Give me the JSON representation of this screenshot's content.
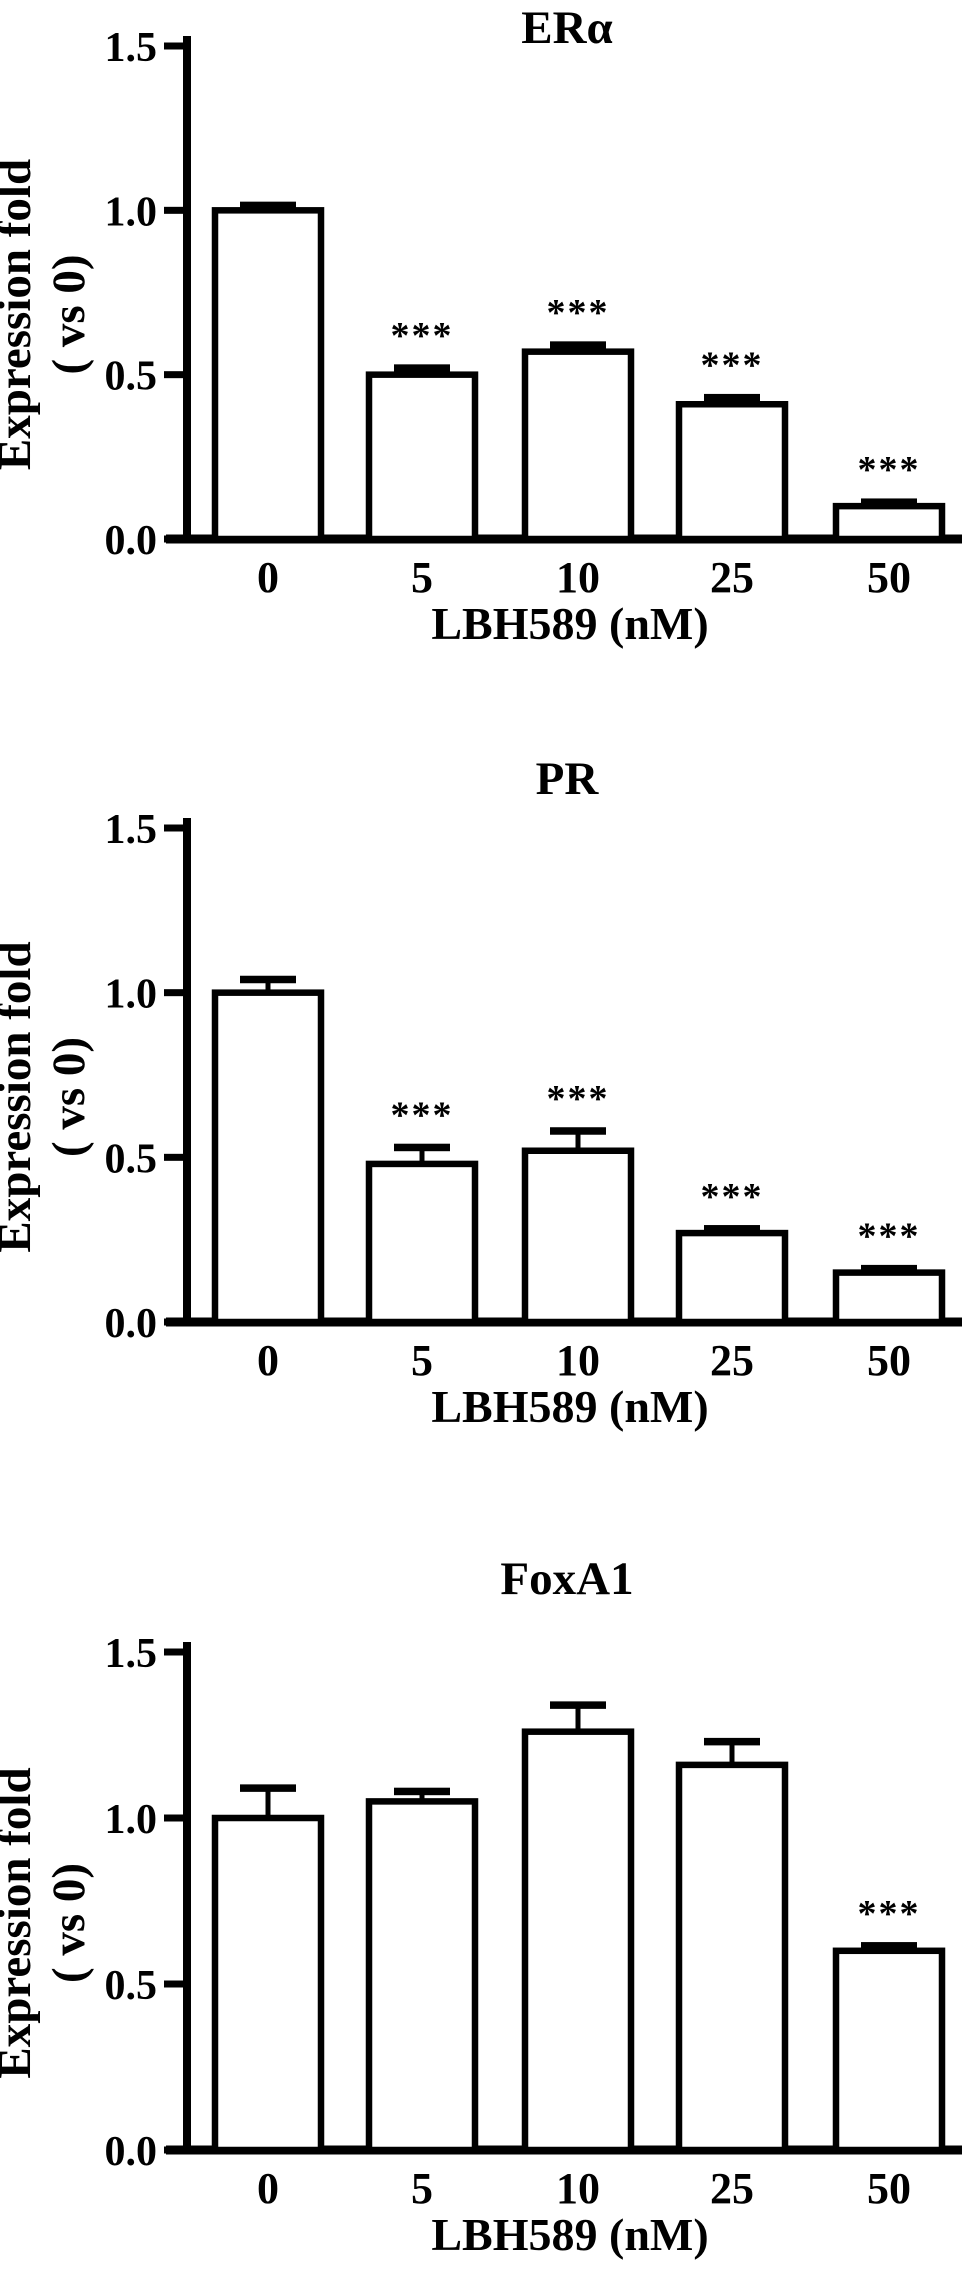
{
  "figure": {
    "description": "Three stacked bar charts showing gene expression fold change vs LBH589 dose",
    "background_color": "#ffffff",
    "ink_color": "#000000",
    "bar_fill_color": "#ffffff",
    "significance_symbol": "***"
  },
  "chart_data": [
    {
      "type": "bar",
      "title": "ERα",
      "categories": [
        "0",
        "5",
        "10",
        "25",
        "50"
      ],
      "values": [
        1.0,
        0.5,
        0.57,
        0.41,
        0.1
      ],
      "errors": [
        0.015,
        0.02,
        0.02,
        0.02,
        0.012
      ],
      "significance": [
        null,
        "***",
        "***",
        "***",
        "***"
      ],
      "xlabel": "LBH589 (nM)",
      "ylabel_lines": [
        "Expression fold",
        "( vs 0)"
      ],
      "yticks": [
        0.0,
        0.5,
        1.0,
        1.5
      ],
      "ytick_labels": [
        "0.0",
        "0.5",
        "1.0",
        "1.5"
      ],
      "ylim": [
        0,
        1.5
      ],
      "grid": false,
      "legend": "none",
      "bar_fill": "#ffffff",
      "bar_stroke": "#000000"
    },
    {
      "type": "bar",
      "title": "PR",
      "categories": [
        "0",
        "5",
        "10",
        "25",
        "50"
      ],
      "values": [
        1.0,
        0.48,
        0.52,
        0.27,
        0.15
      ],
      "errors": [
        0.04,
        0.05,
        0.06,
        0.013,
        0.012
      ],
      "significance": [
        null,
        "***",
        "***",
        "***",
        "***"
      ],
      "xlabel": "LBH589 (nM)",
      "ylabel_lines": [
        "Expression fold",
        "( vs 0)"
      ],
      "yticks": [
        0.0,
        0.5,
        1.0,
        1.5
      ],
      "ytick_labels": [
        "0.0",
        "0.5",
        "1.0",
        "1.5"
      ],
      "ylim": [
        0,
        1.5
      ],
      "grid": false,
      "legend": "none",
      "bar_fill": "#ffffff",
      "bar_stroke": "#000000"
    },
    {
      "type": "bar",
      "title": "FoxA1",
      "categories": [
        "0",
        "5",
        "10",
        "25",
        "50"
      ],
      "values": [
        1.0,
        1.05,
        1.26,
        1.16,
        0.6
      ],
      "errors": [
        0.09,
        0.03,
        0.08,
        0.07,
        0.015
      ],
      "significance": [
        null,
        null,
        null,
        null,
        "***"
      ],
      "xlabel": "LBH589 (nM)",
      "ylabel_lines": [
        "Expression fold",
        "( vs 0)"
      ],
      "yticks": [
        0.0,
        0.5,
        1.0,
        1.5
      ],
      "ytick_labels": [
        "0.0",
        "0.5",
        "1.0",
        "1.5"
      ],
      "ylim": [
        0,
        1.5
      ],
      "grid": false,
      "legend": "none",
      "bar_fill": "#ffffff",
      "bar_stroke": "#000000"
    }
  ]
}
